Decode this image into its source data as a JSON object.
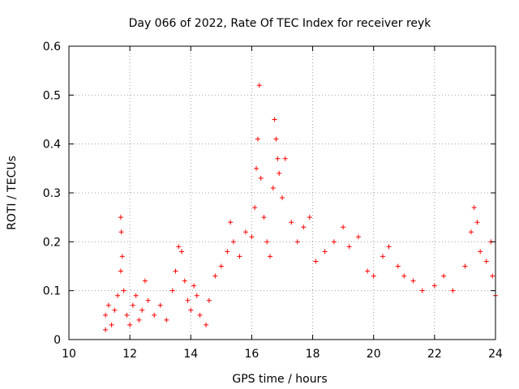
{
  "chart_data": {
    "type": "scatter",
    "title": "Day 066 of 2022, Rate Of TEC Index for receiver reyk",
    "xlabel": "GPS time / hours",
    "ylabel": "ROTI / TECUs",
    "xlim": [
      10,
      24
    ],
    "ylim": [
      0,
      0.6
    ],
    "xticks": [
      "10",
      "12",
      "14",
      "16",
      "18",
      "20",
      "22",
      "24"
    ],
    "yticks": [
      "0",
      "0.1",
      "0.2",
      "0.3",
      "0.4",
      "0.5",
      "0.6"
    ],
    "grid": true,
    "marker": "plus",
    "color": "#ff0000",
    "series": [
      {
        "points": [
          [
            11.2,
            0.02
          ],
          [
            11.2,
            0.05
          ],
          [
            11.3,
            0.07
          ],
          [
            11.4,
            0.03
          ],
          [
            11.5,
            0.06
          ],
          [
            11.6,
            0.09
          ],
          [
            11.7,
            0.25
          ],
          [
            11.72,
            0.22
          ],
          [
            11.75,
            0.17
          ],
          [
            11.7,
            0.14
          ],
          [
            11.8,
            0.1
          ],
          [
            11.9,
            0.05
          ],
          [
            12.0,
            0.03
          ],
          [
            12.1,
            0.07
          ],
          [
            12.2,
            0.09
          ],
          [
            12.3,
            0.04
          ],
          [
            12.4,
            0.06
          ],
          [
            12.5,
            0.12
          ],
          [
            12.6,
            0.08
          ],
          [
            12.8,
            0.05
          ],
          [
            13.0,
            0.07
          ],
          [
            13.2,
            0.04
          ],
          [
            13.4,
            0.1
          ],
          [
            13.5,
            0.14
          ],
          [
            13.6,
            0.19
          ],
          [
            13.7,
            0.18
          ],
          [
            13.8,
            0.12
          ],
          [
            13.9,
            0.08
          ],
          [
            14.0,
            0.06
          ],
          [
            14.1,
            0.11
          ],
          [
            14.2,
            0.09
          ],
          [
            14.3,
            0.05
          ],
          [
            14.5,
            0.03
          ],
          [
            14.6,
            0.08
          ],
          [
            14.8,
            0.13
          ],
          [
            15.0,
            0.15
          ],
          [
            15.2,
            0.18
          ],
          [
            15.3,
            0.24
          ],
          [
            15.4,
            0.2
          ],
          [
            15.6,
            0.17
          ],
          [
            15.8,
            0.22
          ],
          [
            16.0,
            0.21
          ],
          [
            16.1,
            0.27
          ],
          [
            16.15,
            0.35
          ],
          [
            16.2,
            0.41
          ],
          [
            16.25,
            0.52
          ],
          [
            16.3,
            0.33
          ],
          [
            16.4,
            0.25
          ],
          [
            16.5,
            0.2
          ],
          [
            16.6,
            0.17
          ],
          [
            16.7,
            0.31
          ],
          [
            16.75,
            0.45
          ],
          [
            16.8,
            0.41
          ],
          [
            16.85,
            0.37
          ],
          [
            16.9,
            0.34
          ],
          [
            17.0,
            0.29
          ],
          [
            17.1,
            0.37
          ],
          [
            17.3,
            0.24
          ],
          [
            17.5,
            0.2
          ],
          [
            17.7,
            0.23
          ],
          [
            17.9,
            0.25
          ],
          [
            18.1,
            0.16
          ],
          [
            18.4,
            0.18
          ],
          [
            18.7,
            0.2
          ],
          [
            19.0,
            0.23
          ],
          [
            19.2,
            0.19
          ],
          [
            19.5,
            0.21
          ],
          [
            19.8,
            0.14
          ],
          [
            20.0,
            0.13
          ],
          [
            20.3,
            0.17
          ],
          [
            20.5,
            0.19
          ],
          [
            20.8,
            0.15
          ],
          [
            21.0,
            0.13
          ],
          [
            21.3,
            0.12
          ],
          [
            21.6,
            0.1
          ],
          [
            22.0,
            0.11
          ],
          [
            22.3,
            0.13
          ],
          [
            22.6,
            0.1
          ],
          [
            23.0,
            0.15
          ],
          [
            23.2,
            0.22
          ],
          [
            23.3,
            0.27
          ],
          [
            23.4,
            0.24
          ],
          [
            23.5,
            0.18
          ],
          [
            23.7,
            0.16
          ],
          [
            23.85,
            0.2
          ],
          [
            23.9,
            0.13
          ],
          [
            24.0,
            0.09
          ]
        ]
      }
    ]
  }
}
